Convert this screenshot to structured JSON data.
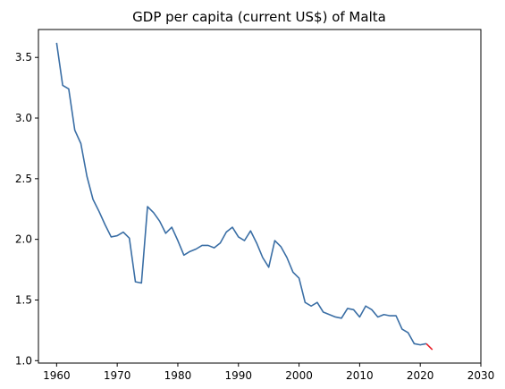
{
  "chart_data": {
    "type": "line",
    "title": "GDP per capita (current US$) of Malta",
    "xlabel": "",
    "ylabel": "",
    "xlim": [
      1957,
      2030
    ],
    "ylim": [
      0.98,
      3.73
    ],
    "x_ticks": [
      1960,
      1970,
      1980,
      1990,
      2000,
      2010,
      2020,
      2030
    ],
    "y_ticks": [
      1.0,
      1.5,
      2.0,
      2.5,
      3.0,
      3.5
    ],
    "x_tick_labels": [
      "1960",
      "1970",
      "1980",
      "1990",
      "2000",
      "2010",
      "2020",
      "2030"
    ],
    "y_tick_labels": [
      "1.0",
      "1.5",
      "2.0",
      "2.5",
      "3.0",
      "3.5"
    ],
    "grid": false,
    "legend": "none",
    "series": [
      {
        "color": "#3a6ea5",
        "x": [
          1960,
          1961,
          1962,
          1963,
          1964,
          1965,
          1966,
          1967,
          1968,
          1969,
          1970,
          1971,
          1972,
          1973,
          1974,
          1975,
          1976,
          1977,
          1978,
          1979,
          1980,
          1981,
          1982,
          1983,
          1984,
          1985,
          1986,
          1987,
          1988,
          1989,
          1990,
          1991,
          1992,
          1993,
          1994,
          1995,
          1996,
          1997,
          1998,
          1999,
          2000,
          2001,
          2002,
          2003,
          2004,
          2005,
          2006,
          2007,
          2008,
          2009,
          2010,
          2011,
          2012,
          2013,
          2014,
          2015,
          2016,
          2017,
          2018,
          2019,
          2020,
          2021
        ],
        "y": [
          3.62,
          3.27,
          3.24,
          2.9,
          2.79,
          2.52,
          2.33,
          2.23,
          2.12,
          2.02,
          2.03,
          2.06,
          2.01,
          1.65,
          1.64,
          2.27,
          2.22,
          2.15,
          2.05,
          2.1,
          1.99,
          1.87,
          1.9,
          1.92,
          1.95,
          1.95,
          1.93,
          1.97,
          2.06,
          2.1,
          2.02,
          1.99,
          2.07,
          1.97,
          1.85,
          1.77,
          1.99,
          1.94,
          1.85,
          1.73,
          1.68,
          1.48,
          1.45,
          1.48,
          1.4,
          1.38,
          1.36,
          1.35,
          1.43,
          1.42,
          1.36,
          1.45,
          1.42,
          1.36,
          1.38,
          1.37,
          1.37,
          1.26,
          1.23,
          1.14,
          1.13,
          1.14
        ]
      },
      {
        "color": "#e8202a",
        "x": [
          2021,
          2022
        ],
        "y": [
          1.14,
          1.09
        ]
      }
    ]
  }
}
